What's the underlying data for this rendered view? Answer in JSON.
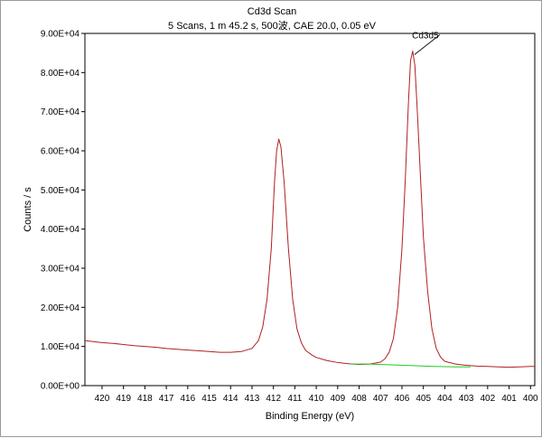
{
  "chart_data": {
    "type": "line",
    "title": "Cd3d Scan",
    "subtitle": "5 Scans,  1 m 45.2 s,  500波,  CAE 20.0,  0.05 eV",
    "xlabel": "Binding Energy (eV)",
    "ylabel": "Counts / s",
    "xlim": [
      420.8,
      399.8
    ],
    "ylim": [
      0,
      90000
    ],
    "x_reversed": true,
    "x_ticks": [
      420,
      419,
      418,
      417,
      416,
      415,
      414,
      413,
      412,
      411,
      410,
      409,
      408,
      407,
      406,
      405,
      404,
      403,
      402,
      401,
      400
    ],
    "y_ticks": [
      0,
      10000,
      20000,
      30000,
      40000,
      50000,
      60000,
      70000,
      80000,
      90000
    ],
    "y_tick_labels": [
      "0.00E+00",
      "1.00E+04",
      "2.00E+04",
      "3.00E+04",
      "4.00E+04",
      "5.00E+04",
      "6.00E+04",
      "7.00E+04",
      "8.00E+04",
      "9.00E+04"
    ],
    "grid": false,
    "series": [
      {
        "color": "#b02020",
        "points": [
          [
            420.8,
            11500
          ],
          [
            420.5,
            11300
          ],
          [
            420.0,
            11000
          ],
          [
            419.5,
            10800
          ],
          [
            419.0,
            10500
          ],
          [
            418.5,
            10200
          ],
          [
            418.0,
            10000
          ],
          [
            417.5,
            9800
          ],
          [
            417.0,
            9500
          ],
          [
            416.5,
            9300
          ],
          [
            416.0,
            9100
          ],
          [
            415.5,
            8900
          ],
          [
            415.0,
            8700
          ],
          [
            414.5,
            8500
          ],
          [
            414.0,
            8500
          ],
          [
            413.5,
            8700
          ],
          [
            413.0,
            9500
          ],
          [
            412.7,
            11500
          ],
          [
            412.5,
            15000
          ],
          [
            412.3,
            22000
          ],
          [
            412.1,
            35000
          ],
          [
            411.95,
            52000
          ],
          [
            411.85,
            60000
          ],
          [
            411.75,
            63000
          ],
          [
            411.65,
            61000
          ],
          [
            411.5,
            52000
          ],
          [
            411.3,
            35000
          ],
          [
            411.1,
            22000
          ],
          [
            410.9,
            14500
          ],
          [
            410.7,
            11000
          ],
          [
            410.5,
            9000
          ],
          [
            410.2,
            7800
          ],
          [
            410.0,
            7200
          ],
          [
            409.5,
            6400
          ],
          [
            409.0,
            5900
          ],
          [
            408.5,
            5600
          ],
          [
            408.0,
            5400
          ],
          [
            407.5,
            5500
          ],
          [
            407.0,
            6000
          ],
          [
            406.8,
            6800
          ],
          [
            406.6,
            8500
          ],
          [
            406.4,
            12000
          ],
          [
            406.2,
            20000
          ],
          [
            406.0,
            35000
          ],
          [
            405.85,
            52000
          ],
          [
            405.7,
            72000
          ],
          [
            405.6,
            83000
          ],
          [
            405.5,
            85500
          ],
          [
            405.4,
            82000
          ],
          [
            405.3,
            72000
          ],
          [
            405.15,
            55000
          ],
          [
            405.0,
            38000
          ],
          [
            404.8,
            24000
          ],
          [
            404.6,
            14500
          ],
          [
            404.4,
            9500
          ],
          [
            404.2,
            7300
          ],
          [
            404.0,
            6200
          ],
          [
            403.5,
            5500
          ],
          [
            403.0,
            5200
          ],
          [
            402.5,
            5000
          ],
          [
            402.0,
            4900
          ],
          [
            401.5,
            4800
          ],
          [
            401.0,
            4700
          ],
          [
            400.5,
            4800
          ],
          [
            400.0,
            4900
          ],
          [
            399.8,
            4900
          ]
        ]
      },
      {
        "color": "#22cc22",
        "points": [
          [
            408.4,
            5500
          ],
          [
            407.5,
            5500
          ],
          [
            406.5,
            5300
          ],
          [
            405.5,
            5100
          ],
          [
            404.5,
            4900
          ],
          [
            403.5,
            4800
          ],
          [
            402.8,
            4800
          ]
        ]
      }
    ],
    "annotations": [
      {
        "text": "Cd3d5",
        "x": 405.5,
        "y": 85500
      }
    ]
  }
}
